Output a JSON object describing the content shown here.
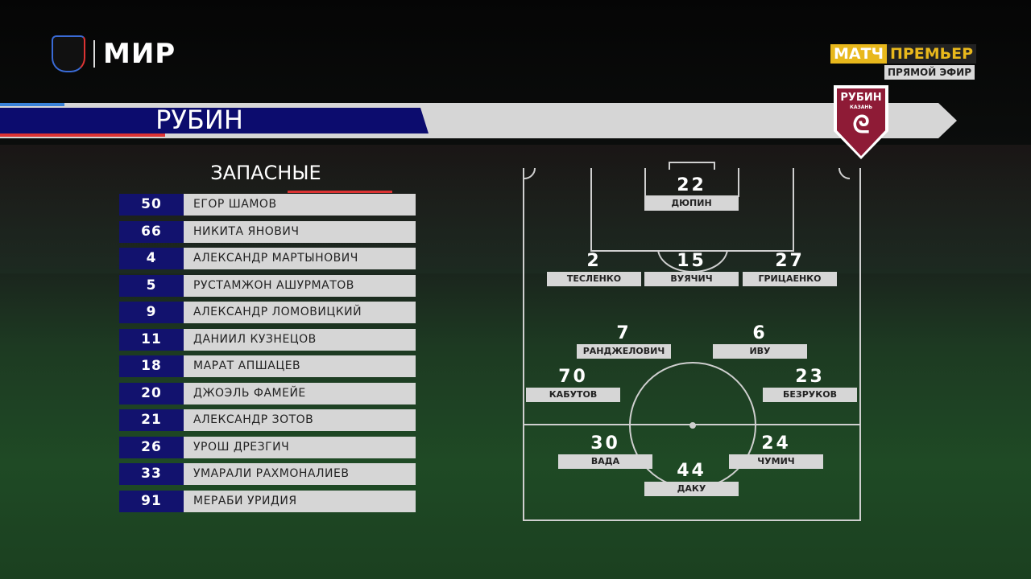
{
  "broadcast": {
    "league_logo": "РПЛ bear",
    "sponsor": "МИР",
    "channel": [
      "МАТЧ",
      "ПРЕМЬЕР"
    ],
    "status": "ПРЯМОЙ ЭФИР"
  },
  "team": {
    "name": "РУБИН",
    "crest_text": "РУБИН",
    "crest_sub": "КАЗАНЬ",
    "colors": {
      "primary": "#12126e",
      "crest": "#8e1b36",
      "accent": "#dd3333"
    }
  },
  "subs": {
    "title": "ЗАПАСНЫЕ",
    "players": [
      {
        "number": "50",
        "name": "ЕГОР ШАМОВ"
      },
      {
        "number": "66",
        "name": "НИКИТА ЯНОВИЧ"
      },
      {
        "number": "4",
        "name": "АЛЕКСАНДР МАРТЫНОВИЧ"
      },
      {
        "number": "5",
        "name": "РУСТАМЖОН АШУРМАТОВ"
      },
      {
        "number": "9",
        "name": "АЛЕКСАНДР ЛОМОВИЦКИЙ"
      },
      {
        "number": "11",
        "name": "ДАНИИЛ КУЗНЕЦОВ"
      },
      {
        "number": "18",
        "name": "МАРАТ АПШАЦЕВ"
      },
      {
        "number": "20",
        "name": "ДЖОЭЛЬ ФАМЕЙЕ"
      },
      {
        "number": "21",
        "name": "АЛЕКСАНДР ЗОТОВ"
      },
      {
        "number": "26",
        "name": "УРОШ ДРЕЗГИЧ"
      },
      {
        "number": "33",
        "name": "УМАРАЛИ РАХМОНАЛИЕВ"
      },
      {
        "number": "91",
        "name": "МЕРАБИ УРИДИЯ"
      }
    ]
  },
  "lineup": [
    {
      "number": "22",
      "name": "ДЮПИН"
    },
    {
      "number": "2",
      "name": "ТЕСЛЕНКО"
    },
    {
      "number": "15",
      "name": "ВУЯЧИЧ"
    },
    {
      "number": "27",
      "name": "ГРИЦАЕНКО"
    },
    {
      "number": "7",
      "name": "РАНДЖЕЛОВИЧ"
    },
    {
      "number": "6",
      "name": "ИВУ"
    },
    {
      "number": "70",
      "name": "КАБУТОВ"
    },
    {
      "number": "23",
      "name": "БЕЗРУКОВ"
    },
    {
      "number": "30",
      "name": "ВАДА"
    },
    {
      "number": "24",
      "name": "ЧУМИЧ"
    },
    {
      "number": "44",
      "name": "ДАКУ"
    }
  ]
}
